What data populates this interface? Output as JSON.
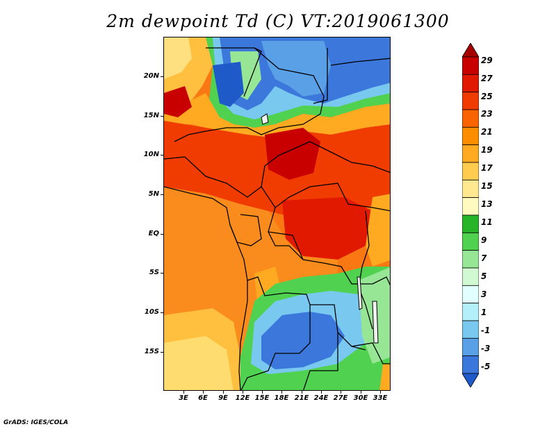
{
  "title": "2m dewpoint Td (C) VT:2019061300",
  "credit": "GrADS: IGES/COLA",
  "y_axis_labels": [
    "20N",
    "15N",
    "10N",
    "5N",
    "EQ",
    "5S",
    "10S",
    "15S"
  ],
  "x_axis_labels": [
    "3E",
    "6E",
    "9E",
    "12E",
    "15E",
    "18E",
    "21E",
    "24E",
    "27E",
    "30E",
    "33E"
  ],
  "colorbar": {
    "labels": [
      "29",
      "27",
      "25",
      "23",
      "21",
      "19",
      "17",
      "15",
      "13",
      "11",
      "9",
      "7",
      "5",
      "3",
      "1",
      "-1",
      "-3",
      "-5"
    ],
    "colors": [
      "#a50000",
      "#c80000",
      "#e11900",
      "#f03c00",
      "#fa6400",
      "#fc8c00",
      "#ffaa20",
      "#ffcc50",
      "#ffe890",
      "#fffac0",
      "#28b428",
      "#50d250",
      "#96e696",
      "#d2fad2",
      "#e1ffff",
      "#b4f0fa",
      "#78c8f0",
      "#5aa0e6",
      "#3c78dc",
      "#1e5ac8"
    ]
  }
}
